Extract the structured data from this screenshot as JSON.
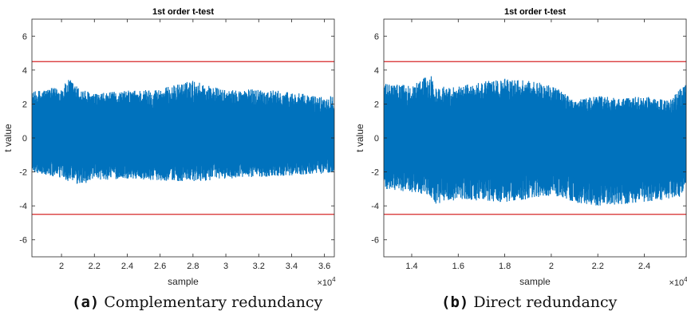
{
  "chart_data": [
    {
      "type": "line",
      "title": "1st order t-test",
      "xlabel": "sample",
      "ylabel": "t value",
      "x_exponent_label": "×10",
      "x_exponent": "4",
      "xlim": [
        1.82,
        3.66
      ],
      "ylim": [
        -7,
        7
      ],
      "xticks": [
        2,
        2.2,
        2.4,
        2.6,
        2.8,
        3,
        3.2,
        3.4,
        3.6
      ],
      "yticks": [
        6,
        4,
        2,
        0,
        -2,
        -4,
        -6
      ],
      "threshold_lines": [
        4.5,
        -4.5
      ],
      "series": [
        {
          "color": "#0072BD",
          "envelope": {
            "x": [
              1.82,
              1.9,
              2.0,
              2.05,
              2.1,
              2.2,
              2.4,
              2.6,
              2.8,
              3.0,
              3.2,
              3.4,
              3.6,
              3.66
            ],
            "upper": [
              2.7,
              2.9,
              3.0,
              3.5,
              3.0,
              2.6,
              2.8,
              2.9,
              3.4,
              2.8,
              2.9,
              2.7,
              2.4,
              2.6
            ],
            "lower": [
              -2.0,
              -2.2,
              -2.4,
              -2.6,
              -2.8,
              -2.5,
              -2.4,
              -2.5,
              -2.6,
              -2.4,
              -2.3,
              -2.2,
              -2.1,
              -2.0
            ]
          }
        }
      ],
      "colors": {
        "signal": "#0072BD",
        "threshold": "#D62728"
      }
    },
    {
      "type": "line",
      "title": "1st order t-test",
      "xlabel": "sample",
      "ylabel": "t value",
      "x_exponent_label": "×10",
      "x_exponent": "4",
      "xlim": [
        1.28,
        2.58
      ],
      "ylim": [
        -7,
        7
      ],
      "xticks": [
        1.4,
        1.6,
        1.8,
        2,
        2.2,
        2.4
      ],
      "yticks": [
        6,
        4,
        2,
        0,
        -2,
        -4,
        -6
      ],
      "threshold_lines": [
        4.5,
        -4.5
      ],
      "series": [
        {
          "color": "#0072BD",
          "envelope": {
            "x": [
              1.28,
              1.4,
              1.48,
              1.5,
              1.6,
              1.8,
              1.95,
              2.0,
              2.1,
              2.2,
              2.3,
              2.4,
              2.5,
              2.58
            ],
            "upper": [
              3.2,
              3.1,
              3.8,
              3.0,
              3.1,
              3.5,
              3.3,
              3.2,
              2.2,
              2.5,
              2.3,
              2.5,
              2.2,
              3.2
            ],
            "lower": [
              -3.0,
              -3.2,
              -3.4,
              -4.0,
              -3.6,
              -3.8,
              -3.5,
              -3.4,
              -3.8,
              -4.0,
              -3.9,
              -3.8,
              -3.6,
              -3.4
            ]
          }
        }
      ],
      "colors": {
        "signal": "#0072BD",
        "threshold": "#D62728"
      }
    }
  ],
  "captions": [
    {
      "tag": "(a)",
      "text": "Complementary redundancy"
    },
    {
      "tag": "(b)",
      "text": "Direct redundancy"
    }
  ]
}
